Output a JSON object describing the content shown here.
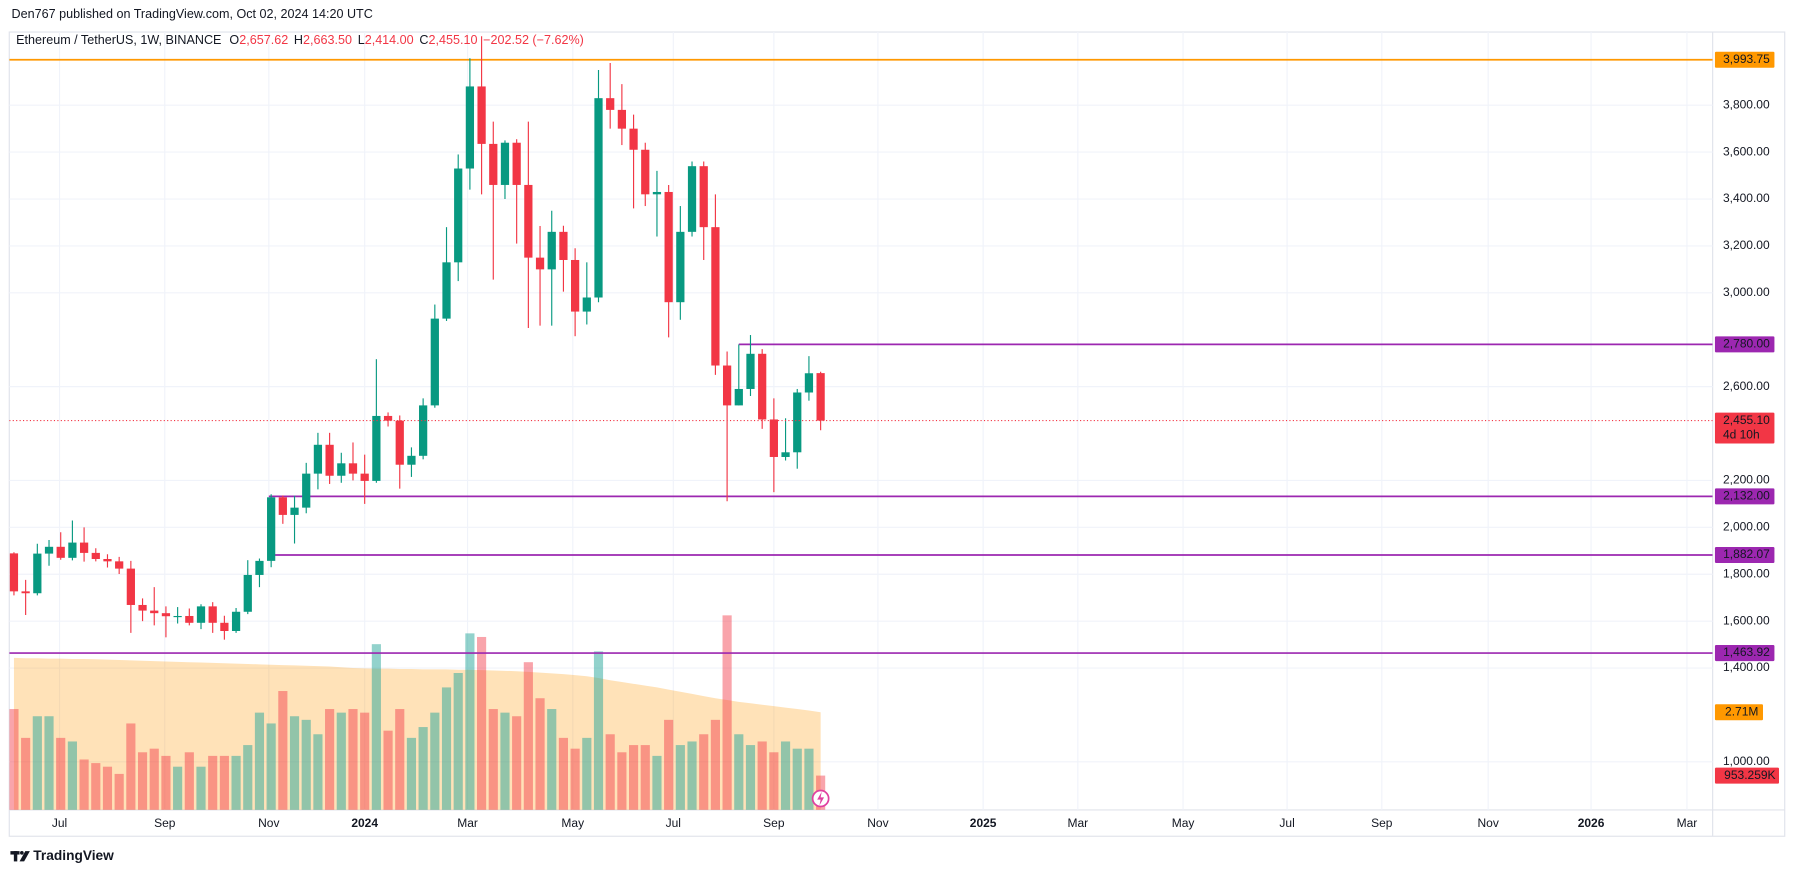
{
  "header": {
    "byline": "Den767 published on TradingView.com, Oct 02, 2024 14:20 UTC"
  },
  "footer": {
    "brand": "TradingView"
  },
  "chart_data": {
    "type": "candlestick",
    "legend": {
      "symbol": "Ethereum / TetherUS, 1W, BINANCE",
      "items": [
        {
          "key": "O",
          "value": 2657.62,
          "label": "2,657.62"
        },
        {
          "key": "H",
          "value": 2663.5,
          "label": "2,663.50"
        },
        {
          "key": "L",
          "value": 2414,
          "label": "2,414.00"
        },
        {
          "key": "C",
          "value": 2455.1,
          "label": "2,455.10"
        }
      ],
      "change": {
        "value": -202.52,
        "label": "−202.52"
      },
      "change_pct": {
        "value": -7.62,
        "label": "(−7.62%)"
      }
    },
    "x": [
      0,
      1,
      2,
      3,
      4,
      5,
      6,
      7,
      8,
      9,
      10,
      11,
      12,
      13,
      14,
      15,
      16,
      17,
      18,
      19,
      20,
      21,
      22,
      23,
      24,
      25,
      26,
      27,
      28,
      29,
      30,
      31,
      32,
      33,
      34,
      35,
      36,
      37,
      38,
      39,
      40,
      41,
      42,
      43,
      44,
      45,
      46,
      47,
      48,
      49,
      50,
      51,
      52,
      53,
      54,
      55,
      56,
      57,
      58,
      59,
      60,
      61,
      62,
      63,
      64,
      65,
      66,
      67,
      68,
      69
    ],
    "open": [
      1889,
      1727,
      1719,
      1888,
      1917,
      1870,
      1935,
      1891,
      1865,
      1855,
      1824,
      1669,
      1645,
      1634,
      1621,
      1622,
      1593,
      1663,
      1593,
      1558,
      1640,
      1797,
      1857,
      2128,
      2053,
      2084,
      2229,
      2352,
      2220,
      2273,
      2229,
      2198,
      2475,
      2455,
      2267,
      2305,
      2520,
      2890,
      3130,
      3530,
      3880,
      3635,
      3460,
      3640,
      3460,
      3150,
      3100,
      3260,
      3140,
      2920,
      2980,
      3830,
      3780,
      3700,
      3610,
      3420,
      3430,
      2960,
      3260,
      3540,
      3280,
      2690,
      2520,
      2590,
      2740,
      2460,
      2300,
      2320,
      2575,
      2657.62
    ],
    "high": [
      1894,
      1776,
      1930,
      1946,
      1979,
      2029,
      2000,
      1911,
      1885,
      1874,
      1857,
      1697,
      1745,
      1663,
      1660,
      1654,
      1672,
      1681,
      1623,
      1656,
      1860,
      1867,
      2141,
      2136,
      2135,
      2275,
      2403,
      2403,
      2318,
      2362,
      2310,
      2717,
      2490,
      2477,
      2341,
      2550,
      2950,
      3280,
      3590,
      4000,
      4094,
      3730,
      3650,
      3655,
      3730,
      3285,
      3350,
      3286,
      3190,
      3130,
      3950,
      3980,
      3890,
      3760,
      3640,
      3520,
      3460,
      3370,
      3560,
      3560,
      3420,
      2750,
      2780,
      2820,
      2760,
      2550,
      2465,
      2590,
      2730,
      2663.5
    ],
    "low": [
      1710,
      1626,
      1710,
      1836,
      1862,
      1859,
      1854,
      1855,
      1829,
      1801,
      1550,
      1600,
      1582,
      1531,
      1590,
      1582,
      1566,
      1550,
      1521,
      1550,
      1630,
      1745,
      1830,
      2015,
      1931,
      2060,
      2162,
      2185,
      2190,
      2200,
      2100,
      2190,
      2430,
      2165,
      2215,
      2290,
      2510,
      2880,
      3050,
      3440,
      3420,
      3056,
      3400,
      3210,
      2850,
      2860,
      2860,
      3005,
      2815,
      2865,
      2960,
      3700,
      3630,
      3360,
      3370,
      3240,
      2810,
      2885,
      3240,
      3140,
      2650,
      2111,
      2520,
      2560,
      2420,
      2150,
      2285,
      2250,
      2540,
      2414
    ],
    "close": [
      1727,
      1719,
      1888,
      1917,
      1870,
      1935,
      1891,
      1865,
      1855,
      1824,
      1669,
      1645,
      1634,
      1621,
      1622,
      1593,
      1663,
      1593,
      1558,
      1640,
      1797,
      1857,
      2128,
      2053,
      2084,
      2229,
      2352,
      2220,
      2273,
      2229,
      2198,
      2475,
      2455,
      2267,
      2305,
      2520,
      2890,
      3130,
      3530,
      3880,
      3635,
      3460,
      3640,
      3460,
      3150,
      3100,
      3260,
      3140,
      2920,
      2980,
      3830,
      3780,
      3700,
      3610,
      3420,
      3430,
      2960,
      3260,
      3540,
      3280,
      2690,
      2520,
      2590,
      2740,
      2460,
      2300,
      2320,
      2575,
      2657,
      2455.1
    ],
    "up_color": "#089981",
    "down_color": "#f23645",
    "volume": {
      "values": [
        2800000,
        2000000,
        2600000,
        2600000,
        2000000,
        1900000,
        1400000,
        1300000,
        1200000,
        1000000,
        2400000,
        1600000,
        1700000,
        1500000,
        1200000,
        1600000,
        1200000,
        1500000,
        1500000,
        1500000,
        1800000,
        2700000,
        2400000,
        3300000,
        2600000,
        2500000,
        2100000,
        2800000,
        2700000,
        2800000,
        2700000,
        4600000,
        2200000,
        2800000,
        2000000,
        2300000,
        2700000,
        3400000,
        3800000,
        4900000,
        4800000,
        2800000,
        2700000,
        2600000,
        4100000,
        3100000,
        2800000,
        2000000,
        1700000,
        2000000,
        4400000,
        2100000,
        1600000,
        1800000,
        1800000,
        1500000,
        2500000,
        1800000,
        1900000,
        2100000,
        2500000,
        5400000,
        2100000,
        1800000,
        1900000,
        1600000,
        1900000,
        1700000,
        1700000,
        953259
      ],
      "up_color": "rgba(38,166,154,0.5)",
      "down_color": "rgba(242,54,69,0.45)",
      "last_label": "953.259K",
      "ma": {
        "values": [
          4220000,
          4210000,
          4210000,
          4200000,
          4200000,
          4190000,
          4190000,
          4180000,
          4170000,
          4160000,
          4150000,
          4140000,
          4130000,
          4120000,
          4110000,
          4100000,
          4090000,
          4080000,
          4070000,
          4060000,
          4050000,
          4040000,
          4030000,
          4020000,
          4010000,
          4000000,
          3990000,
          3980000,
          3960000,
          3940000,
          3930000,
          3920000,
          3920000,
          3910000,
          3910000,
          3900000,
          3900000,
          3900000,
          3890000,
          3890000,
          3880000,
          3870000,
          3860000,
          3850000,
          3830000,
          3810000,
          3790000,
          3770000,
          3740000,
          3710000,
          3660000,
          3600000,
          3550000,
          3500000,
          3450000,
          3400000,
          3340000,
          3280000,
          3220000,
          3160000,
          3100000,
          3050000,
          3000000,
          2960000,
          2920000,
          2880000,
          2840000,
          2800000,
          2760000,
          2710000
        ],
        "color": "rgba(255,152,0,0.28)",
        "label_color": "#ff9800",
        "last_label": "2.71M"
      }
    },
    "xlim": [
      -0.4,
      145.3
    ],
    "xticks": [
      {
        "value": 3.9,
        "label": "Jul"
      },
      {
        "value": 12.9,
        "label": "Sep"
      },
      {
        "value": 21.8,
        "label": "Nov"
      },
      {
        "value": 30.0,
        "label": "2024"
      },
      {
        "value": 38.8,
        "label": "Mar"
      },
      {
        "value": 47.8,
        "label": "May"
      },
      {
        "value": 56.4,
        "label": "Jul"
      },
      {
        "value": 65.0,
        "label": "Sep"
      },
      {
        "value": 73.9,
        "label": "Nov"
      },
      {
        "value": 82.9,
        "label": "2025"
      },
      {
        "value": 91.0,
        "label": "Mar"
      },
      {
        "value": 100.0,
        "label": "May"
      },
      {
        "value": 108.9,
        "label": "Jul"
      },
      {
        "value": 117.0,
        "label": "Sep"
      },
      {
        "value": 126.1,
        "label": "Nov"
      },
      {
        "value": 134.9,
        "label": "2026"
      },
      {
        "value": 143.1,
        "label": "Mar"
      }
    ],
    "ylim": [
      795,
      4112
    ],
    "yticks": [
      {
        "value": 1000,
        "label": "1,000.00"
      },
      {
        "value": 1400,
        "label": "1,400.00"
      },
      {
        "value": 1600,
        "label": "1,600.00"
      },
      {
        "value": 1800,
        "label": "1,800.00"
      },
      {
        "value": 2000,
        "label": "2,000.00"
      },
      {
        "value": 2200,
        "label": "2,200.00"
      },
      {
        "value": 2600,
        "label": "2,600.00"
      },
      {
        "value": 3000,
        "label": "3,000.00"
      },
      {
        "value": 3200,
        "label": "3,200.00"
      },
      {
        "value": 3400,
        "label": "3,400.00"
      },
      {
        "value": 3600,
        "label": "3,600.00"
      },
      {
        "value": 3800,
        "label": "3,800.00"
      }
    ],
    "grid": true,
    "levels": [
      {
        "value": 3993.75,
        "label": "3,993.75",
        "color": "#ff9800"
      },
      {
        "value": 2780,
        "label": "2,780.00",
        "color": "#9c27b0",
        "start": 62
      },
      {
        "value": 2132,
        "label": "2,132.00",
        "color": "#9c27b0",
        "start": 21.8
      },
      {
        "value": 1882.07,
        "label": "1,882.07",
        "color": "#9c27b0",
        "start": 21.8
      },
      {
        "value": 1463.92,
        "label": "1,463.92",
        "color": "#9c27b0"
      }
    ],
    "last_price": {
      "value": 2455.1,
      "label": "2,455.10",
      "countdown": "4d 10h",
      "color": "#f23645"
    }
  }
}
